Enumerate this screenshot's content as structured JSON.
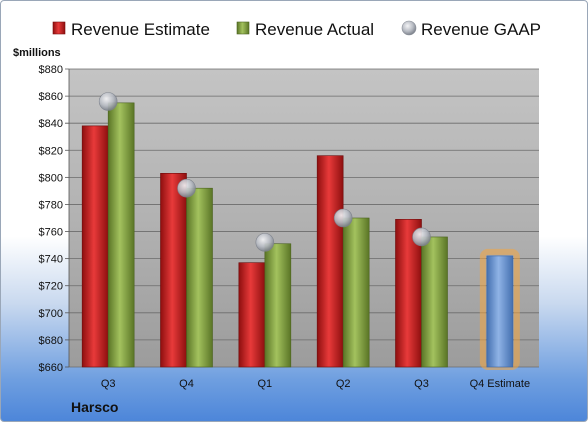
{
  "company": "Harsco",
  "colors": {
    "estimate": "#c81e1e",
    "actual": "#7a9a3a",
    "forecast": "#6f9ad6",
    "forecast_glow": "#f4a640",
    "gaap": "#b8bcc4"
  },
  "chart_data": {
    "type": "bar",
    "ylabel": "$millions",
    "ylim": [
      660,
      880
    ],
    "yticks": [
      "$660",
      "$680",
      "$700",
      "$720",
      "$740",
      "$760",
      "$780",
      "$800",
      "$820",
      "$840",
      "$860",
      "$880"
    ],
    "ytick_values": [
      660,
      680,
      700,
      720,
      740,
      760,
      780,
      800,
      820,
      840,
      860,
      880
    ],
    "categories": [
      "Q3",
      "Q4",
      "Q1",
      "Q2",
      "Q3",
      "Q4 Estimate"
    ],
    "legend": {
      "placement": "top"
    },
    "series": [
      {
        "name": "Revenue Estimate",
        "type": "bar",
        "values": [
          838,
          803,
          737,
          816,
          769,
          null
        ]
      },
      {
        "name": "Revenue Actual",
        "type": "bar",
        "values": [
          855,
          792,
          751,
          770,
          756,
          742
        ]
      },
      {
        "name": "Revenue GAAP",
        "type": "marker",
        "values": [
          856,
          792,
          752,
          770,
          756,
          null
        ]
      }
    ],
    "grid": true
  }
}
